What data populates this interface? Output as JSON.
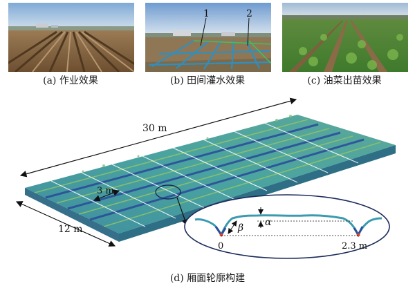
{
  "figure": {
    "panels": [
      {
        "id": "a",
        "caption": "(a) 作业效果"
      },
      {
        "id": "b",
        "caption": "(b) 田间灌水效果",
        "markers": [
          "1",
          "2"
        ]
      },
      {
        "id": "c",
        "caption": "(c) 油菜出苗效果"
      }
    ],
    "model": {
      "caption": "(d) 厢面轮廓构建",
      "length_label": "30 m",
      "width_label": "12 m",
      "bed_label": "3 m",
      "profile": {
        "origin_label": "0",
        "end_label": "2.3 m",
        "alpha_label": "α",
        "beta_label": "β"
      }
    },
    "colors": {
      "bed": "#4aa3a0",
      "furrow": "#2b4f9a",
      "ridge_crest": "#8fc46a",
      "profile_line": "#3a9bb0"
    }
  }
}
